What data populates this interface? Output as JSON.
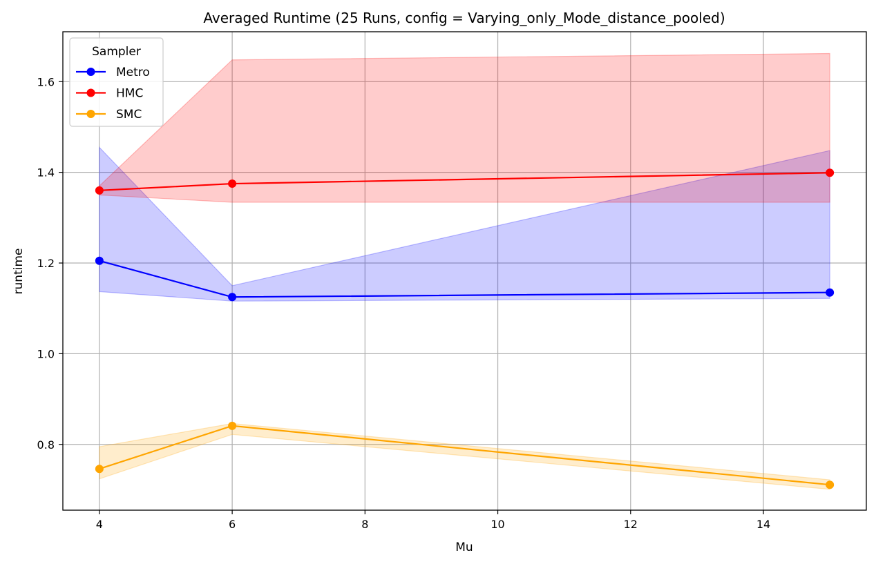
{
  "chart_data": {
    "type": "line",
    "title": "Averaged Runtime (25 Runs, config = Varying_only_Mode_distance_pooled)",
    "xlabel": "Mu",
    "ylabel": "runtime",
    "xlim": [
      3.45,
      15.55
    ],
    "ylim": [
      0.655,
      1.71
    ],
    "xticks": [
      4,
      6,
      8,
      10,
      12,
      14
    ],
    "yticks": [
      0.8,
      1.0,
      1.2,
      1.4,
      1.6
    ],
    "xtick_labels": [
      "4",
      "6",
      "8",
      "10",
      "12",
      "14"
    ],
    "ytick_labels": [
      "0.8",
      "1.0",
      "1.2",
      "1.4",
      "1.6"
    ],
    "grid": true,
    "legend": {
      "title": "Sampler",
      "placement": "top-left"
    },
    "x": [
      4,
      6,
      15
    ],
    "series": [
      {
        "name": "Metro",
        "color": "#0000ff",
        "values": [
          1.205,
          1.125,
          1.135
        ],
        "band_low": [
          1.137,
          1.116,
          1.122
        ],
        "band_high": [
          1.455,
          1.15,
          1.448
        ]
      },
      {
        "name": "HMC",
        "color": "#ff0000",
        "values": [
          1.36,
          1.375,
          1.399
        ],
        "band_low": [
          1.35,
          1.334,
          1.334
        ],
        "band_high": [
          1.37,
          1.648,
          1.662
        ]
      },
      {
        "name": "SMC",
        "color": "#ffa500",
        "values": [
          0.746,
          0.841,
          0.711
        ],
        "band_low": [
          0.724,
          0.822,
          0.701
        ],
        "band_high": [
          0.795,
          0.846,
          0.722
        ]
      }
    ]
  }
}
